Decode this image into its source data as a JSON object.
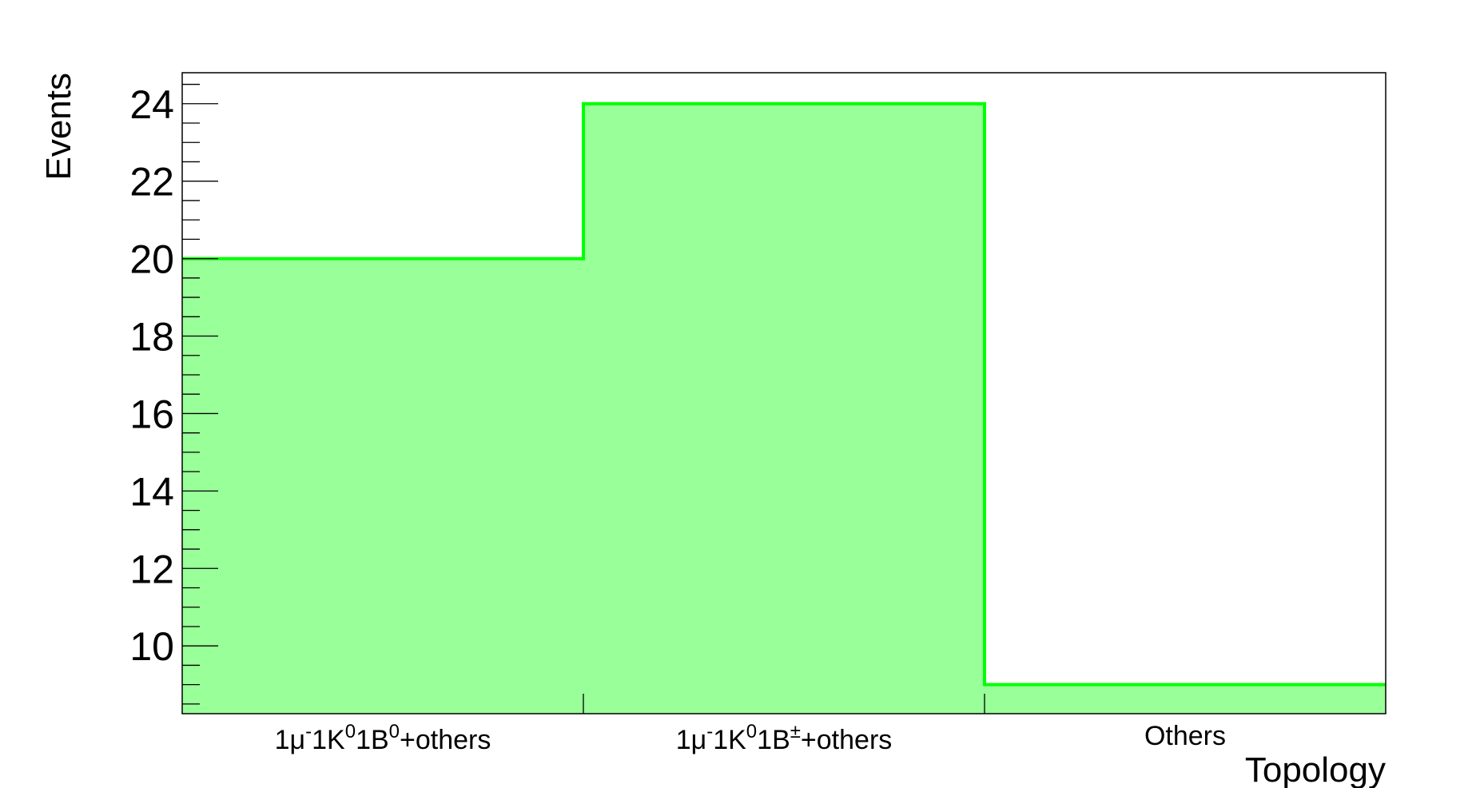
{
  "chart_data": {
    "type": "bar",
    "style": "step-histogram",
    "categories": [
      {
        "base": "1μ",
        "sup1": "-",
        "mid1": "1K",
        "sup2": "0",
        "mid2": "1B",
        "sup3": "0",
        "tail": "+others"
      },
      {
        "base": "1μ",
        "sup1": "-",
        "mid1": "1K",
        "sup2": "0",
        "mid2": "1B",
        "sup3": "±",
        "tail": "+others"
      },
      {
        "base": "Others"
      }
    ],
    "values": [
      20,
      24,
      9
    ],
    "title": "",
    "xlabel": "Topology",
    "ylabel": "Events",
    "ylim": [
      8.25,
      24.8
    ],
    "yticks": [
      10,
      12,
      14,
      16,
      18,
      20,
      22,
      24
    ],
    "ytick_labels": [
      "10",
      "12",
      "14",
      "16",
      "18",
      "20",
      "22",
      "24"
    ],
    "grid": false,
    "legend": "none",
    "colors": {
      "fill": "#99ff99",
      "line": "#00ff00",
      "frame": "#000000"
    }
  }
}
